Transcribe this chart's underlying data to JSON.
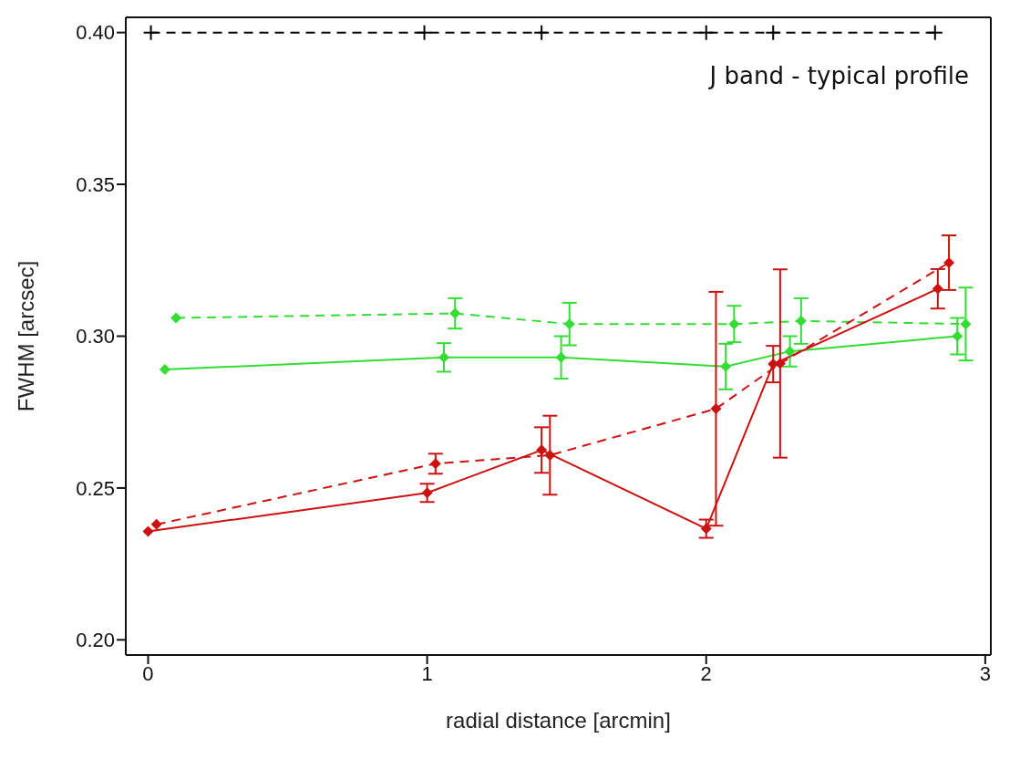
{
  "chart_data": {
    "type": "line",
    "xlabel": "radial distance [arcmin]",
    "ylabel": "FWHM [arcsec]",
    "annotations": [
      "J band - typical profile"
    ],
    "xlim": [
      -0.08,
      3.02
    ],
    "ylim": [
      0.195,
      0.405
    ],
    "xticks": [
      0,
      1,
      2,
      3
    ],
    "yticks": [
      {
        "value": 0.2,
        "label": "0.20"
      },
      {
        "value": 0.25,
        "label": "0.25"
      },
      {
        "value": 0.3,
        "label": "0.30"
      },
      {
        "value": 0.35,
        "label": "0.35"
      },
      {
        "value": 0.4,
        "label": "0.40"
      }
    ],
    "grid": false,
    "legend": false,
    "marker": "diamond",
    "series": [
      {
        "color": "#000000",
        "line_style": "dashed",
        "marker": "cross",
        "x": [
          0.01,
          0.99,
          1.41,
          2.0,
          2.24,
          2.82
        ],
        "values": [
          0.4,
          0.4,
          0.4,
          0.4,
          0.4,
          0.4
        ]
      },
      {
        "color": "#33dd33",
        "line_style": "dashed",
        "x": [
          0.1,
          1.1,
          1.51,
          2.1,
          2.34,
          2.93
        ],
        "values": [
          0.306,
          0.3075,
          0.304,
          0.304,
          0.305,
          0.304
        ],
        "errors": [
          null,
          0.005,
          0.007,
          0.006,
          0.0075,
          0.012
        ]
      },
      {
        "color": "#33dd33",
        "line_style": "solid",
        "x": [
          0.06,
          1.06,
          1.48,
          2.07,
          2.3,
          2.9
        ],
        "values": [
          0.289,
          0.293,
          0.293,
          0.29,
          0.295,
          0.3
        ],
        "errors": [
          null,
          0.0047,
          0.007,
          0.0075,
          0.005,
          0.006
        ]
      },
      {
        "color": "#cc1111",
        "line_style": "dashed",
        "x": [
          0.03,
          1.03,
          1.44,
          2.035,
          2.265,
          2.87
        ],
        "values": [
          0.238,
          0.258,
          0.2608,
          0.2761,
          0.291,
          0.3242
        ],
        "errors": [
          null,
          0.0033,
          0.013,
          0.0385,
          0.031,
          0.009
        ]
      },
      {
        "color": "#cc1111",
        "line_style": "solid",
        "x": [
          0.0,
          1.0,
          1.41,
          2.0,
          2.24,
          2.83
        ],
        "values": [
          0.2357,
          0.2484,
          0.2625,
          0.2366,
          0.2908,
          0.3156
        ],
        "errors": [
          null,
          0.003,
          0.0075,
          0.003,
          0.006,
          0.0065
        ]
      }
    ]
  }
}
